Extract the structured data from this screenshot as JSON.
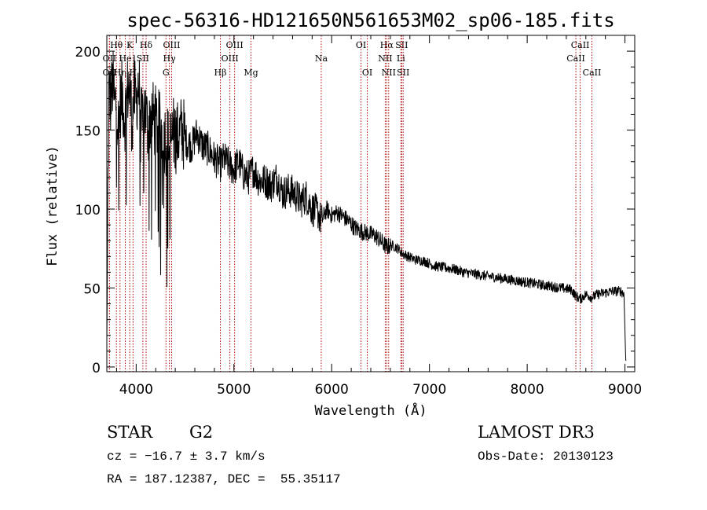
{
  "chart_data": {
    "type": "line",
    "title": "spec-56316-HD121650N561653M02_sp06-185.fits",
    "xlabel": "Wavelength (Å)",
    "ylabel": "Flux (relative)",
    "xlim": [
      3700,
      9100
    ],
    "ylim": [
      -3,
      210
    ],
    "xticks": [
      4000,
      5000,
      6000,
      7000,
      8000,
      9000
    ],
    "yticks": [
      0,
      50,
      100,
      150,
      200
    ],
    "grid": false,
    "series": [
      {
        "name": "spectrum",
        "x": [
          3700,
          3720,
          3740,
          3760,
          3780,
          3800,
          3820,
          3840,
          3860,
          3880,
          3900,
          3920,
          3940,
          3960,
          3980,
          4000,
          4020,
          4040,
          4060,
          4080,
          4100,
          4120,
          4150,
          4200,
          4250,
          4300,
          4340,
          4380,
          4420,
          4470,
          4520,
          4570,
          4620,
          4680,
          4740,
          4800,
          4861,
          4900,
          4950,
          5000,
          5050,
          5100,
          5150,
          5200,
          5260,
          5320,
          5380,
          5440,
          5500,
          5560,
          5620,
          5680,
          5740,
          5800,
          5860,
          5893,
          5950,
          6000,
          6060,
          6120,
          6180,
          6240,
          6300,
          6350,
          6400,
          6450,
          6500,
          6563,
          6620,
          6680,
          6720,
          6780,
          6850,
          6950,
          7050,
          7150,
          7250,
          7350,
          7450,
          7550,
          7650,
          7750,
          7850,
          7950,
          8050,
          8150,
          8250,
          8350,
          8450,
          8498,
          8542,
          8600,
          8662,
          8720,
          8800,
          8880,
          8960,
          8990,
          9005,
          9010
        ],
        "values": [
          15,
          175,
          168,
          180,
          165,
          170,
          150,
          168,
          172,
          158,
          165,
          180,
          170,
          155,
          175,
          165,
          180,
          170,
          150,
          165,
          160,
          150,
          160,
          155,
          150,
          145,
          140,
          148,
          145,
          150,
          142,
          140,
          148,
          140,
          138,
          132,
          128,
          132,
          128,
          125,
          130,
          122,
          120,
          125,
          118,
          118,
          115,
          120,
          110,
          112,
          110,
          105,
          108,
          100,
          98,
          92,
          100,
          96,
          98,
          95,
          92,
          88,
          86,
          85,
          84,
          83,
          80,
          76,
          77,
          75,
          72,
          70,
          68,
          67,
          64,
          63,
          62,
          60,
          59,
          58,
          57,
          56,
          55,
          54,
          53,
          52,
          51,
          50,
          49,
          45,
          43,
          46,
          44,
          46,
          47,
          48,
          48,
          46,
          10,
          2
        ]
      }
    ],
    "lines": [
      {
        "label": "Hθ",
        "x": 3798,
        "row": 1
      },
      {
        "label": "OII",
        "x": 3727,
        "row": 2
      },
      {
        "label": "Hη",
        "x": 3835,
        "row": 3
      },
      {
        "label": "OII",
        "x": 3727,
        "row": 3
      },
      {
        "label": "He",
        "x": 3889,
        "row": 2
      },
      {
        "label": "K",
        "x": 3934,
        "row": 1
      },
      {
        "label": "H",
        "x": 3968,
        "row": 3
      },
      {
        "label": "Hδ",
        "x": 4102,
        "row": 1
      },
      {
        "label": "SII",
        "x": 4069,
        "row": 2
      },
      {
        "label": "OIII",
        "x": 4363,
        "row": 1
      },
      {
        "label": "Hγ",
        "x": 4340,
        "row": 2
      },
      {
        "label": "G",
        "x": 4305,
        "row": 3
      },
      {
        "label": "Hβ",
        "x": 4861,
        "row": 3
      },
      {
        "label": "OIII",
        "x": 5007,
        "row": 1
      },
      {
        "label": "OIII",
        "x": 4959,
        "row": 2
      },
      {
        "label": "Mg",
        "x": 5175,
        "row": 3
      },
      {
        "label": "Na",
        "x": 5893,
        "row": 2
      },
      {
        "label": "OI",
        "x": 6300,
        "row": 1
      },
      {
        "label": "OI",
        "x": 6364,
        "row": 3
      },
      {
        "label": "Hα",
        "x": 6563,
        "row": 1
      },
      {
        "label": "SII",
        "x": 6716,
        "row": 1
      },
      {
        "label": "NII",
        "x": 6548,
        "row": 2
      },
      {
        "label": "Li",
        "x": 6708,
        "row": 2
      },
      {
        "label": "NII",
        "x": 6583,
        "row": 3
      },
      {
        "label": "SII",
        "x": 6731,
        "row": 3
      },
      {
        "label": "CaII",
        "x": 8542,
        "row": 1
      },
      {
        "label": "CaII",
        "x": 8498,
        "row": 2
      },
      {
        "label": "CaII",
        "x": 8662,
        "row": 3
      }
    ],
    "line_color": "#b00000"
  },
  "info": {
    "object_class": "STAR",
    "subclass": "G2",
    "survey": "LAMOST DR3",
    "redshift": "cz = −16.7 ± 3.7 km/s",
    "obs_date": "Obs-Date: 20130123",
    "coords": "RA = 187.12387, DEC =  55.35117"
  }
}
